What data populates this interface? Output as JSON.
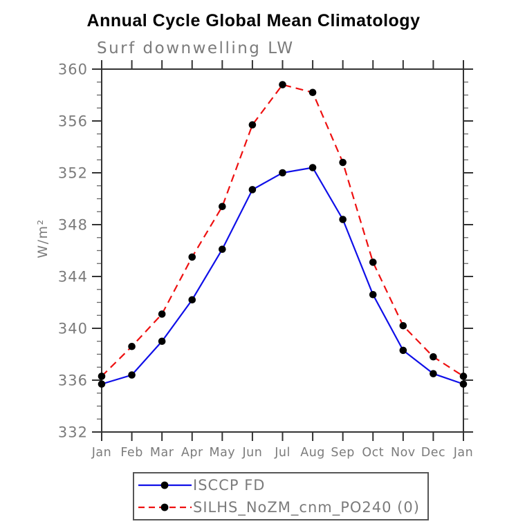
{
  "chart_data": {
    "type": "line",
    "title": "Annual Cycle Global Mean Climatology",
    "subtitle": "Surf downwelling LW",
    "ylabel": "W/m²",
    "xlabel": "",
    "categories": [
      "Jan",
      "Feb",
      "Mar",
      "Apr",
      "May",
      "Jun",
      "Jul",
      "Aug",
      "Sep",
      "Oct",
      "Nov",
      "Dec",
      "Jan"
    ],
    "ylim": [
      332,
      360
    ],
    "y_ticks": [
      332,
      336,
      340,
      344,
      348,
      352,
      356,
      360
    ],
    "y_minor_step": 1,
    "grid": false,
    "legend_position": "bottom",
    "frame_color": "#333333",
    "tick_label_color": "#7b7b7b",
    "marker_color": "#000000",
    "series": [
      {
        "name": "ISCCP FD",
        "color": "#0f0fe8",
        "style": "solid",
        "marker": "circle",
        "values": [
          335.7,
          336.4,
          339.0,
          342.2,
          346.1,
          350.7,
          352.0,
          352.4,
          348.4,
          342.6,
          338.3,
          336.5,
          335.7
        ]
      },
      {
        "name": "SILHS_NoZM_cnm_PO240 (0)",
        "color": "#ee1010",
        "style": "dashed",
        "marker": "circle",
        "values": [
          336.3,
          338.6,
          341.1,
          345.5,
          349.4,
          355.7,
          358.8,
          358.2,
          352.8,
          345.1,
          340.2,
          337.8,
          336.3
        ]
      }
    ]
  }
}
